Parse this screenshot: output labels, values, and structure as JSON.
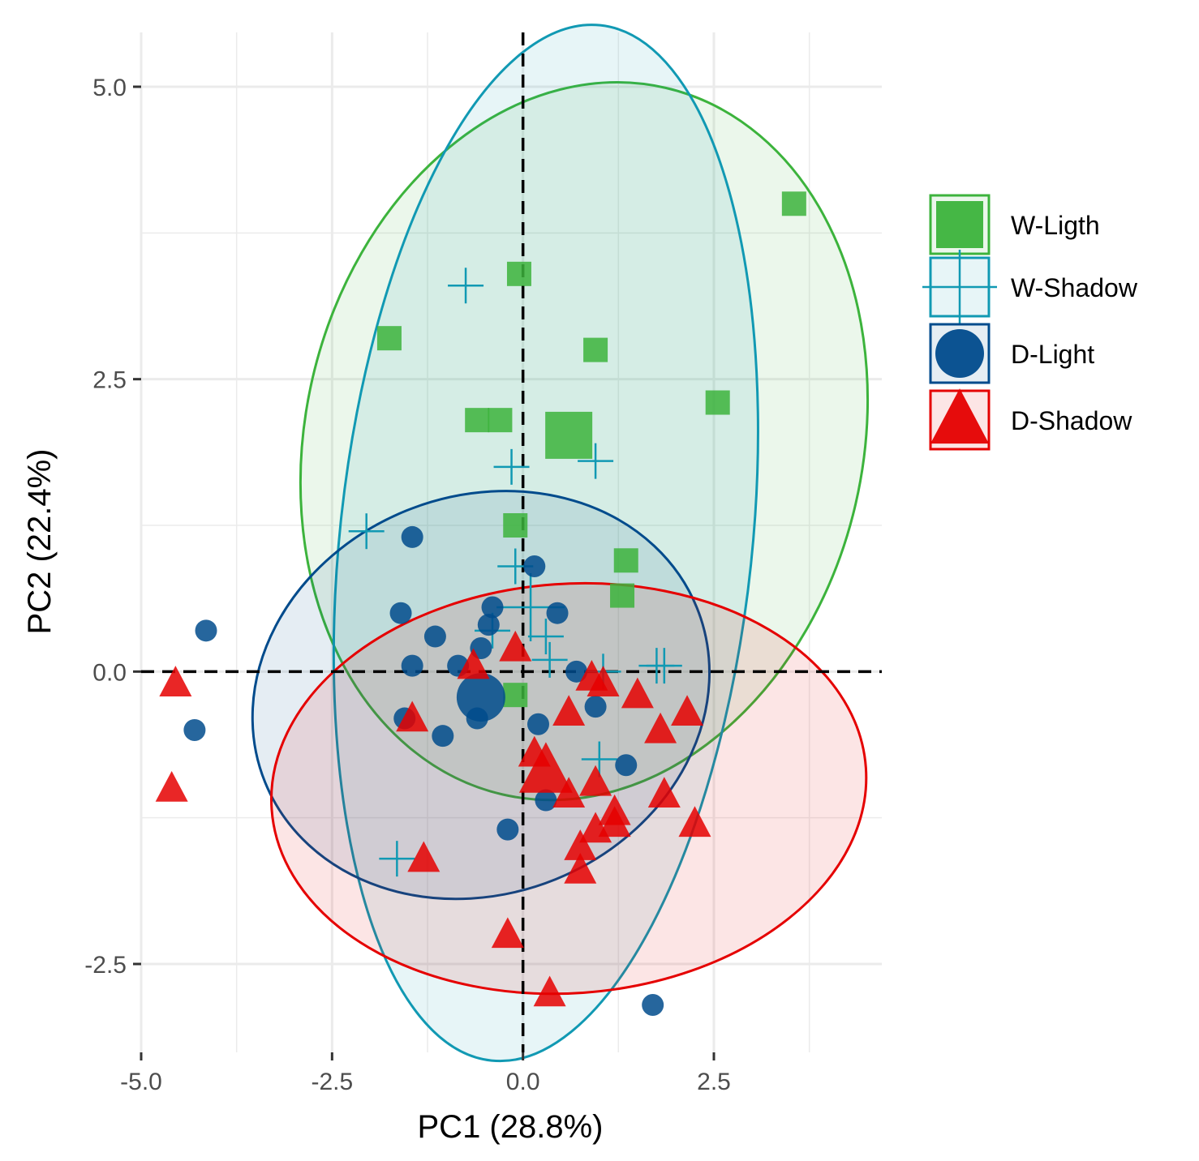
{
  "chart_data": {
    "type": "scatter",
    "title": "",
    "xlabel": "PC1 (28.8%)",
    "ylabel": "PC2 (22.4%)",
    "xlim": [
      -5.0,
      4.6
    ],
    "ylim": [
      -3.2,
      5.5
    ],
    "xticks": [
      -5.0,
      -2.5,
      0.0,
      2.5
    ],
    "xtick_labels": [
      "-5.0",
      "-2.5",
      "0.0",
      "2.5"
    ],
    "yticks": [
      -2.5,
      0.0,
      2.5,
      5.0
    ],
    "ytick_labels": [
      "-2.5",
      "0.0",
      "2.5",
      "5.0"
    ],
    "minor_xticks": [
      -3.75,
      -1.25,
      1.25,
      3.75
    ],
    "minor_yticks": [
      -1.25,
      1.25,
      3.75
    ],
    "reference_lines": {
      "x": 0,
      "y": 0,
      "style": "dashed"
    },
    "grid": true,
    "legend_position": "right",
    "series": [
      {
        "name": "W-Ligth",
        "marker": "square",
        "color": "#3cb33c",
        "fill": "#3cb33c",
        "fill_opacity": 0.1,
        "ellipse": {
          "center": [
            0.8,
            1.97
          ],
          "rx": 3.65,
          "ry": 3.1,
          "angle_deg": 13
        },
        "centroid": [
          0.6,
          2.02
        ],
        "points": [
          [
            3.55,
            4.0
          ],
          [
            -0.05,
            3.4
          ],
          [
            -1.75,
            2.85
          ],
          [
            0.95,
            2.75
          ],
          [
            2.55,
            2.3
          ],
          [
            -0.6,
            2.15
          ],
          [
            -0.3,
            2.15
          ],
          [
            -0.1,
            1.25
          ],
          [
            1.35,
            0.95
          ],
          [
            1.3,
            0.65
          ],
          [
            -0.1,
            -0.2
          ]
        ]
      },
      {
        "name": "W-Shadow",
        "marker": "cross",
        "color": "#1199b3",
        "fill": "#1199b3",
        "fill_opacity": 0.1,
        "ellipse": {
          "center": [
            0.3,
            1.1
          ],
          "rx": 2.7,
          "ry": 4.45,
          "angle_deg": 6
        },
        "centroid": [
          0.1,
          0.55
        ],
        "points": [
          [
            -0.75,
            3.3
          ],
          [
            -0.15,
            1.75
          ],
          [
            0.95,
            1.8
          ],
          [
            -2.05,
            1.2
          ],
          [
            -0.1,
            0.9
          ],
          [
            -0.4,
            0.35
          ],
          [
            0.3,
            0.3
          ],
          [
            0.35,
            0.1
          ],
          [
            1.05,
            0.0
          ],
          [
            1.75,
            0.05
          ],
          [
            1.85,
            0.05
          ],
          [
            1.0,
            -0.75
          ],
          [
            -1.65,
            -1.6
          ]
        ]
      },
      {
        "name": "D-Light",
        "marker": "circle",
        "color": "#004b8c",
        "fill": "#004b8c",
        "fill_opacity": 0.1,
        "ellipse": {
          "center": [
            -0.55,
            -0.2
          ],
          "rx": 3.05,
          "ry": 1.7,
          "angle_deg": -22
        },
        "centroid": [
          -0.55,
          -0.22
        ],
        "points": [
          [
            -1.45,
            1.15
          ],
          [
            0.15,
            0.9
          ],
          [
            -0.4,
            0.55
          ],
          [
            -1.6,
            0.5
          ],
          [
            -0.45,
            0.4
          ],
          [
            0.45,
            0.5
          ],
          [
            -4.15,
            0.35
          ],
          [
            -1.15,
            0.3
          ],
          [
            -0.55,
            0.2
          ],
          [
            -1.45,
            0.05
          ],
          [
            -0.85,
            0.05
          ],
          [
            0.7,
            0.0
          ],
          [
            0.95,
            -0.3
          ],
          [
            -1.55,
            -0.4
          ],
          [
            -0.6,
            -0.4
          ],
          [
            0.2,
            -0.45
          ],
          [
            -1.05,
            -0.55
          ],
          [
            -4.3,
            -0.5
          ],
          [
            1.35,
            -0.8
          ],
          [
            0.3,
            -1.1
          ],
          [
            -0.2,
            -1.35
          ],
          [
            1.7,
            -2.85
          ]
        ]
      },
      {
        "name": "D-Shadow",
        "marker": "triangle",
        "color": "#e50000",
        "fill": "#e50000",
        "fill_opacity": 0.1,
        "ellipse": {
          "center": [
            0.6,
            -1.0
          ],
          "rx": 3.9,
          "ry": 1.75,
          "angle_deg": -4
        },
        "centroid": [
          0.3,
          -0.85
        ],
        "points": [
          [
            -0.1,
            0.2
          ],
          [
            -0.65,
            0.05
          ],
          [
            -4.55,
            -0.1
          ],
          [
            0.9,
            -0.05
          ],
          [
            1.05,
            -0.1
          ],
          [
            1.5,
            -0.2
          ],
          [
            -1.45,
            -0.4
          ],
          [
            0.6,
            -0.35
          ],
          [
            2.15,
            -0.35
          ],
          [
            1.8,
            -0.5
          ],
          [
            0.15,
            -0.7
          ],
          [
            0.95,
            -0.95
          ],
          [
            0.6,
            -1.05
          ],
          [
            -4.6,
            -1.0
          ],
          [
            1.85,
            -1.05
          ],
          [
            1.2,
            -1.2
          ],
          [
            0.95,
            -1.35
          ],
          [
            1.2,
            -1.3
          ],
          [
            2.25,
            -1.3
          ],
          [
            0.75,
            -1.5
          ],
          [
            0.75,
            -1.7
          ],
          [
            -1.3,
            -1.6
          ],
          [
            -0.2,
            -2.25
          ],
          [
            0.35,
            -2.75
          ]
        ]
      }
    ]
  }
}
